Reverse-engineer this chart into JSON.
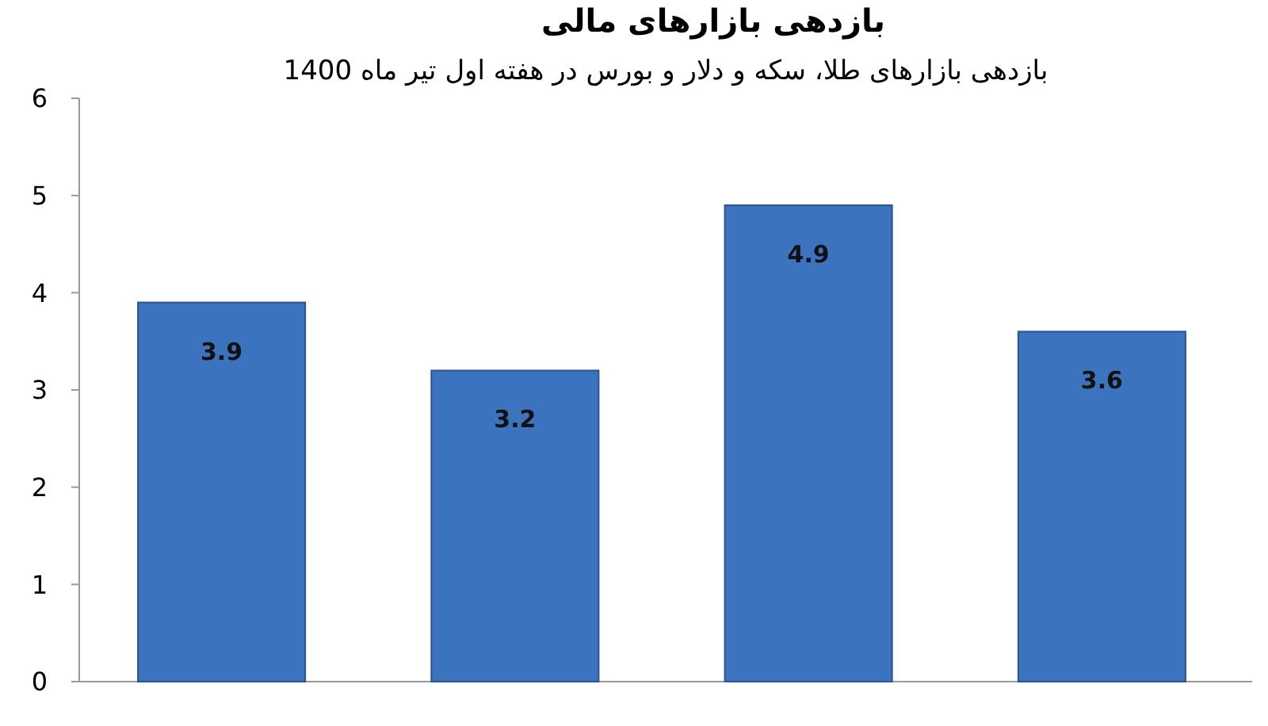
{
  "chart_data": {
    "type": "bar",
    "title": "بازدهی بازارهای مالی",
    "subtitle": "بازدهی بازارهای طلا، سکه و دلار و بورس در هفته اول تیر ماه 1400",
    "categories": [
      null,
      null,
      null,
      null
    ],
    "values": [
      3.9,
      3.2,
      4.9,
      3.6
    ],
    "color": "#3c73be",
    "ylim": [
      0,
      6
    ],
    "yticks": [
      0,
      1,
      2,
      3,
      4,
      5,
      6
    ],
    "data_labels": true
  }
}
